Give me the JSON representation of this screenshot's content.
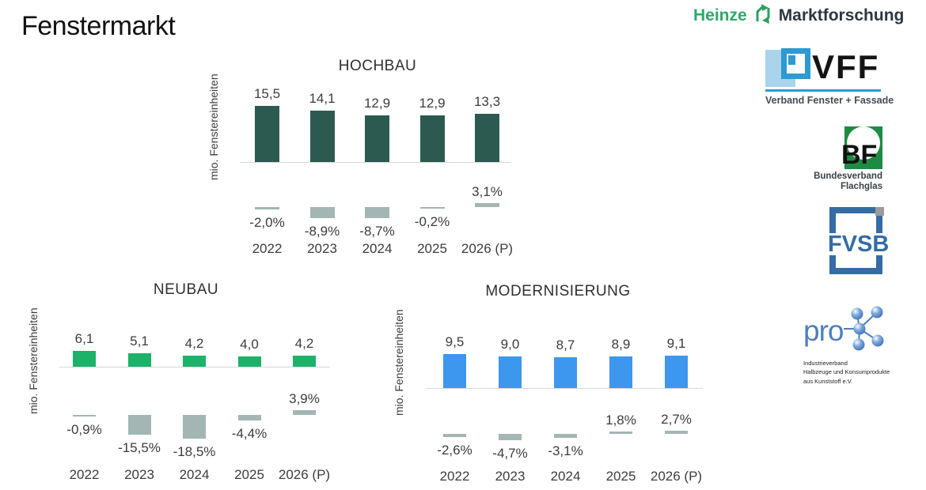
{
  "page": {
    "title": "Fenstermarkt"
  },
  "chart_data": [
    {
      "id": "hochbau",
      "type": "bar",
      "title": "HOCHBAU",
      "ylabel": "mio. Fenstereinheiten",
      "categories": [
        "2022",
        "2023",
        "2024",
        "2025",
        "2026 (P)"
      ],
      "values": [
        15.5,
        14.1,
        12.9,
        12.9,
        13.3
      ],
      "value_labels": [
        "15,5",
        "14,1",
        "12,9",
        "12,9",
        "13,3"
      ],
      "change_pct": [
        -2.0,
        -8.9,
        -8.7,
        -0.2,
        3.1
      ],
      "change_pct_labels": [
        "-2,0%",
        "-8,9%",
        "-8,7%",
        "-0,2%",
        "3,1%"
      ],
      "bar_color": "#2c5a50",
      "pct_bar_color": "#a3b6b4",
      "ylim": [
        0,
        16
      ],
      "grid": false,
      "legend": "none"
    },
    {
      "id": "neubau",
      "type": "bar",
      "title": "NEUBAU",
      "ylabel": "mio. Fenstereinheiten",
      "categories": [
        "2022",
        "2023",
        "2024",
        "2025",
        "2026 (P)"
      ],
      "values": [
        6.1,
        5.1,
        4.2,
        4.0,
        4.2
      ],
      "value_labels": [
        "6,1",
        "5,1",
        "4,2",
        "4,0",
        "4,2"
      ],
      "change_pct": [
        -0.9,
        -15.5,
        -18.5,
        -4.4,
        3.9
      ],
      "change_pct_labels": [
        "-0,9%",
        "-15,5%",
        "-18,5%",
        "-4,4%",
        "3,9%"
      ],
      "bar_color": "#1cb268",
      "pct_bar_color": "#a3b6b4",
      "ylim": [
        0,
        7
      ],
      "grid": false,
      "legend": "none"
    },
    {
      "id": "modernisierung",
      "type": "bar",
      "title": "MODERNISIERUNG",
      "ylabel": "mio. Fenstereinheiten",
      "categories": [
        "2022",
        "2023",
        "2024",
        "2025",
        "2026 (P)"
      ],
      "values": [
        9.5,
        9.0,
        8.7,
        8.9,
        9.1
      ],
      "value_labels": [
        "9,5",
        "9,0",
        "8,7",
        "8,9",
        "9,1"
      ],
      "change_pct": [
        -2.6,
        -4.7,
        -3.1,
        1.8,
        2.7
      ],
      "change_pct_labels": [
        "-2,6%",
        "-4,7%",
        "-3,1%",
        "1,8%",
        "2,7%"
      ],
      "bar_color": "#3d97ee",
      "pct_bar_color": "#a3b6b4",
      "ylim": [
        0,
        10
      ],
      "grid": false,
      "legend": "none"
    }
  ],
  "logos": {
    "heinze": {
      "name": "Heinze",
      "suffix": "Marktforschung",
      "green": "#2ea86a",
      "dark": "#2c3642"
    },
    "vff": {
      "abbr": "VFF",
      "subtitle": "Verband Fenster + Fassade",
      "blue": "#2d9ad3",
      "light_blue": "#a9d4eb"
    },
    "bf": {
      "abbr": "BF",
      "line1": "Bundesverband",
      "line2": "Flachglas",
      "green": "#1f8a44"
    },
    "fvsb": {
      "abbr": "FVSB",
      "blue": "#356ca5"
    },
    "prok": {
      "name": "pro",
      "line1": "Industrieverband",
      "line2": "Halbzeuge und Konsumprodukte",
      "line3": "aus Kunststoff e.V.",
      "blue": "#4d7fbe"
    }
  }
}
